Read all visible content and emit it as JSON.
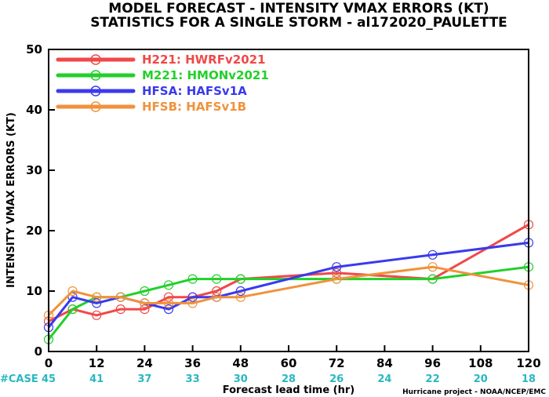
{
  "chart_data": {
    "type": "line",
    "title": "MODEL FORECAST - INTENSITY VMAX ERRORS (KT)",
    "subtitle": "STATISTICS FOR A SINGLE STORM - al172020_PAULETTE",
    "xlabel": "Forecast lead time (hr)",
    "ylabel": "INTENSITY VMAX ERRORS (KT)",
    "xlim": [
      0,
      120
    ],
    "ylim": [
      0,
      50
    ],
    "xticks": [
      0,
      12,
      24,
      36,
      48,
      60,
      72,
      84,
      96,
      108,
      120
    ],
    "yticks": [
      0,
      10,
      20,
      30,
      40,
      50
    ],
    "grid": false,
    "legend_position": "top-left",
    "case_label": "#CASE",
    "case_x": [
      0,
      12,
      24,
      36,
      48,
      60,
      72,
      84,
      96,
      108,
      120
    ],
    "case_counts": [
      45,
      41,
      37,
      33,
      30,
      28,
      26,
      24,
      22,
      20,
      18
    ],
    "credit": "Hurricane project - NOAA/NCEP/EMC",
    "series": [
      {
        "name": "H221: HWRFv2021",
        "color": "#f04848",
        "x": [
          0,
          6,
          12,
          18,
          24,
          30,
          36,
          42,
          48,
          72,
          96,
          120
        ],
        "y": [
          5,
          7,
          6,
          7,
          7,
          9,
          9,
          10,
          12,
          13,
          12,
          21
        ]
      },
      {
        "name": "M221: HMONv2021",
        "color": "#22d02a",
        "x": [
          0,
          6,
          12,
          18,
          24,
          30,
          36,
          42,
          48,
          72,
          96,
          120
        ],
        "y": [
          2,
          7,
          9,
          9,
          10,
          11,
          12,
          12,
          12,
          12,
          12,
          14
        ]
      },
      {
        "name": "HFSA: HAFSv1A",
        "color": "#3a3aee",
        "x": [
          0,
          6,
          12,
          18,
          24,
          30,
          36,
          42,
          48,
          72,
          96,
          120
        ],
        "y": [
          4,
          9,
          8,
          9,
          8,
          7,
          9,
          9,
          10,
          14,
          16,
          18
        ]
      },
      {
        "name": "HFSB: HAFSv1B",
        "color": "#f0923c",
        "x": [
          0,
          6,
          12,
          18,
          24,
          30,
          36,
          42,
          48,
          72,
          96,
          120
        ],
        "y": [
          6,
          10,
          9,
          9,
          8,
          8,
          8,
          9,
          9,
          12,
          14,
          11
        ]
      }
    ]
  },
  "colors": {
    "case_count": "#28b8c0",
    "case_label": "#28b8c0",
    "axis": "#000000"
  }
}
